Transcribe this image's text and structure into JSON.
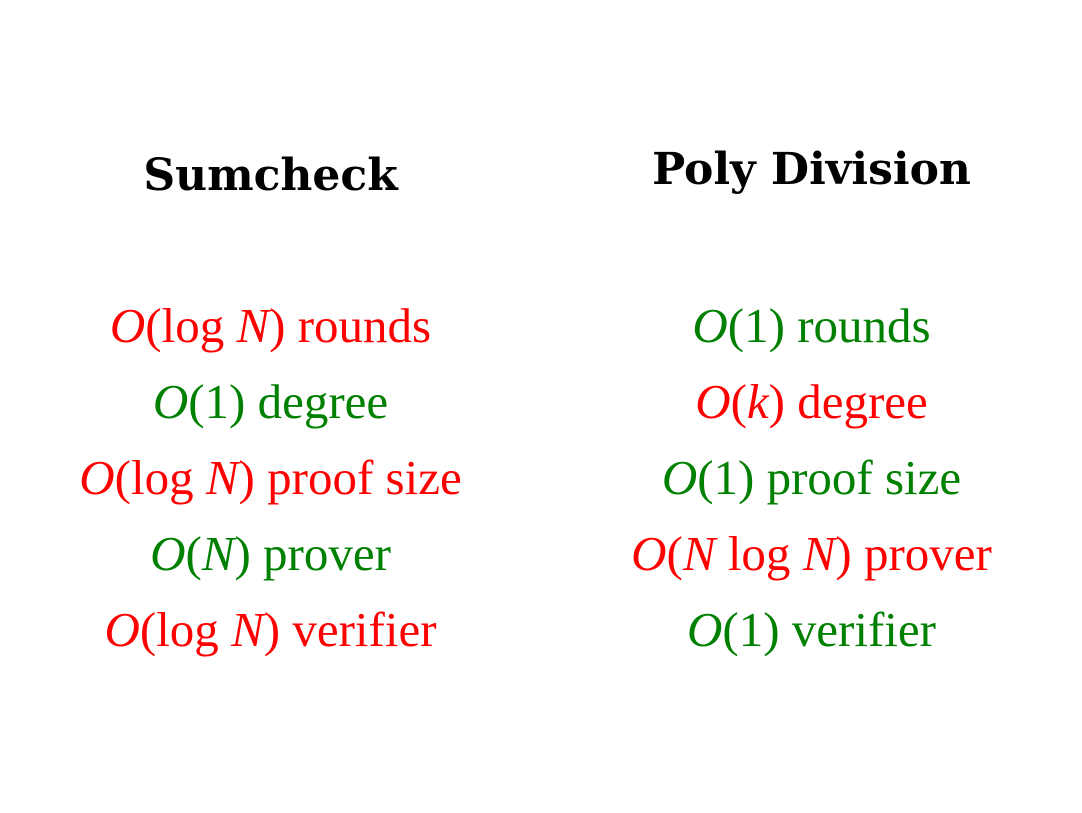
{
  "colors": {
    "bad": "#ff0000",
    "good": "#008000",
    "heading": "#000000"
  },
  "columns": [
    {
      "title": "Sumcheck",
      "rows": [
        {
          "math": "O(log N)",
          "label": "rounds",
          "status": "bad"
        },
        {
          "math": "O(1)",
          "label": "degree",
          "status": "good"
        },
        {
          "math": "O(log N)",
          "label": "proof size",
          "status": "bad"
        },
        {
          "math": "O(N)",
          "label": "prover",
          "status": "good"
        },
        {
          "math": "O(log N)",
          "label": "verifier",
          "status": "bad"
        }
      ]
    },
    {
      "title": "Poly Division",
      "rows": [
        {
          "math": "O(1)",
          "label": "rounds",
          "status": "good"
        },
        {
          "math": "O(k)",
          "label": "degree",
          "status": "bad"
        },
        {
          "math": "O(1)",
          "label": "proof size",
          "status": "good"
        },
        {
          "math": "O(N log N)",
          "label": "prover",
          "status": "bad"
        },
        {
          "math": "O(1)",
          "label": "verifier",
          "status": "good"
        }
      ]
    }
  ]
}
